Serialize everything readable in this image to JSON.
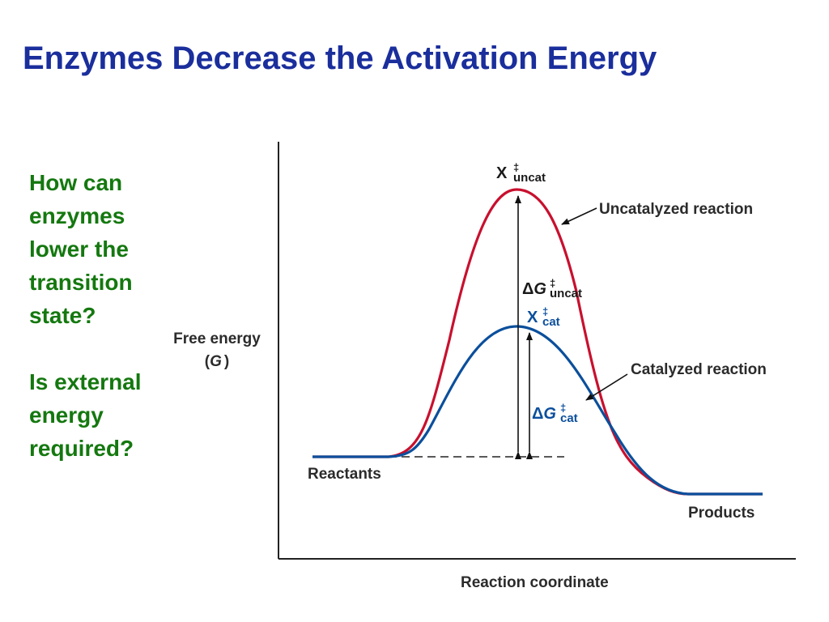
{
  "title": "Enzymes Decrease the Activation Energy",
  "questions": [
    "How can enzymes lower the transition state?",
    "Is external energy required?"
  ],
  "diagram": {
    "x_axis_label": "Reaction coordinate",
    "y_axis_label_line1": "Free energy",
    "y_axis_label_open": "(",
    "y_axis_label_symbol": "G",
    "y_axis_label_close": ")",
    "reactants_label": "Reactants",
    "products_label": "Products",
    "uncatalyzed_label": "Uncatalyzed reaction",
    "catalyzed_label": "Catalyzed reaction",
    "transition_symbol": "X",
    "delta_symbol": "Δ",
    "g_symbol": "G",
    "dagger": "‡",
    "uncat_subscript": "uncat",
    "cat_subscript": "cat",
    "colors": {
      "uncatalyzed": "#c8102e",
      "catalyzed": "#0b4f9c",
      "title": "#1a2e9c",
      "questions": "#14780f"
    }
  }
}
